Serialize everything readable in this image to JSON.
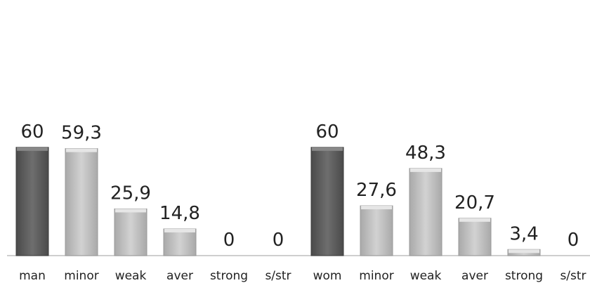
{
  "chart_data": {
    "type": "bar",
    "categories": [
      "man",
      "minor",
      "weak",
      "aver",
      "strong",
      "s/str",
      "wom",
      "minor",
      "weak",
      "aver",
      "strong",
      "s/str"
    ],
    "values": [
      60,
      59.3,
      25.9,
      14.8,
      0,
      0,
      60,
      27.6,
      48.3,
      20.7,
      3.4,
      0
    ],
    "value_labels": [
      "60",
      "59,3",
      "25,9",
      "14,8",
      "0",
      "0",
      "60",
      "27,6",
      "48,3",
      "20,7",
      "3,4",
      "0"
    ],
    "title": "",
    "xlabel": "",
    "ylabel": "",
    "axis_visible": false,
    "grid": false,
    "legend": "none",
    "colors": {
      "group_total": "#5f5f5f",
      "category": "#c2c2c2",
      "baseline": "#bdbdbd"
    }
  }
}
